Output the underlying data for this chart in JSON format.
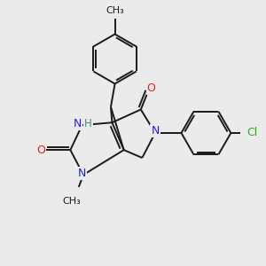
{
  "background_color": "#ebebeb",
  "bond_color": "#1a1a1a",
  "atom_colors": {
    "N": "#2222cc",
    "O": "#dd2222",
    "Cl": "#22aa22",
    "H": "#448888"
  },
  "figsize": [
    3.0,
    3.0
  ],
  "dpi": 100
}
